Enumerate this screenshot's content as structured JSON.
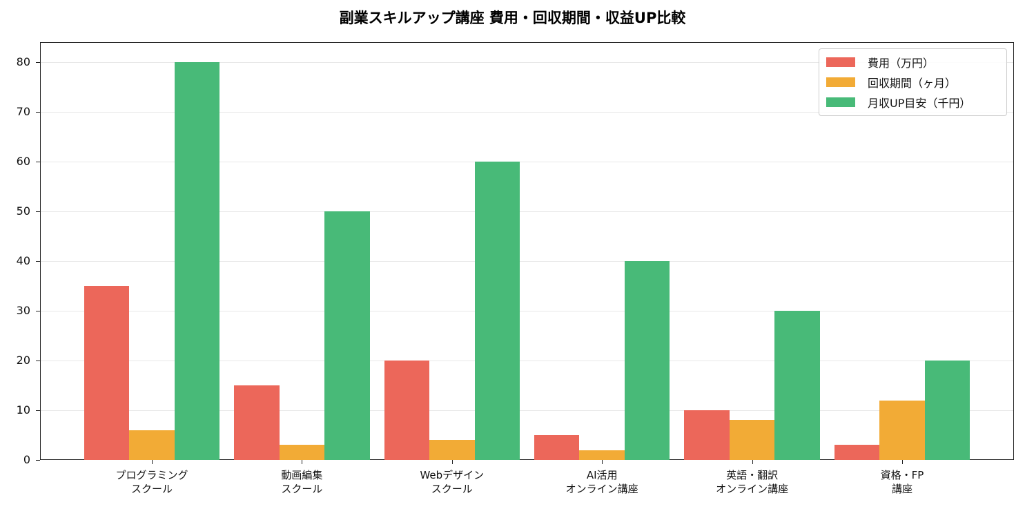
{
  "chart_data": {
    "type": "bar",
    "title": "副業スキルアップ講座 費用・回収期間・収益UP比較",
    "xlabel": "",
    "ylabel": "",
    "ylim": [
      0,
      84
    ],
    "yticks": [
      0,
      10,
      20,
      30,
      40,
      50,
      60,
      70,
      80
    ],
    "grid": true,
    "legend_position": "upper right",
    "categories": [
      "プログラミング\nスクール",
      "動画編集\nスクール",
      "Webデザイン\nスクール",
      "AI活用\nオンライン講座",
      "英語・翻訳\nオンライン講座",
      "資格・FP\n講座"
    ],
    "series": [
      {
        "name": "費用（万円）",
        "color": "#EC675A",
        "values": [
          35,
          15,
          20,
          5,
          10,
          3
        ]
      },
      {
        "name": "回収期間（ヶ月）",
        "color": "#F2AB36",
        "values": [
          6,
          3,
          4,
          2,
          8,
          12
        ]
      },
      {
        "name": "月収UP目安（千円）",
        "color": "#48BA78",
        "values": [
          80,
          50,
          60,
          40,
          30,
          20
        ]
      }
    ]
  }
}
